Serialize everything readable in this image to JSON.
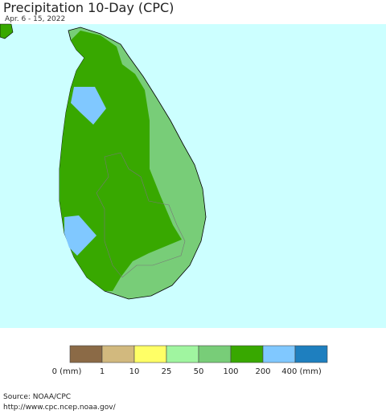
{
  "header": {
    "title": "Precipitation 10-Day (CPC)",
    "subtitle": "Apr. 6 - 15, 2022"
  },
  "legend": {
    "colors": [
      "#8b6a46",
      "#d2b97e",
      "#ffff66",
      "#a0f5a0",
      "#78cd78",
      "#38a800",
      "#80c8ff",
      "#1e7fbf"
    ],
    "labels": [
      "0 (mm)",
      "1",
      "10",
      "25",
      "50",
      "100",
      "200",
      "400 (mm)"
    ]
  },
  "footer": {
    "source": "Source: NOAA/CPC",
    "url": "http://www.cpc.ncep.noaa.gov/"
  }
}
